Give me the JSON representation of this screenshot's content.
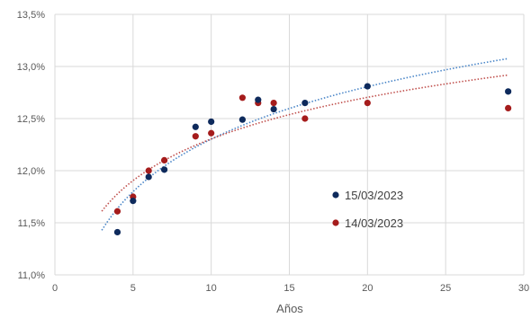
{
  "chart_data": {
    "type": "scatter",
    "title": "",
    "xlabel": "Años",
    "ylabel": "",
    "xlim": [
      0,
      30
    ],
    "ylim": [
      0.11,
      0.135
    ],
    "x_ticks": [
      0,
      5,
      10,
      15,
      20,
      25,
      30
    ],
    "x_tick_labels": [
      "0",
      "5",
      "10",
      "15",
      "20",
      "25",
      "30"
    ],
    "y_ticks": [
      0.11,
      0.115,
      0.12,
      0.125,
      0.13,
      0.135
    ],
    "y_tick_labels": [
      "11,0%",
      "11,5%",
      "12,0%",
      "12,5%",
      "13,0%",
      "13,5%"
    ],
    "grid": true,
    "legend_position": "inside-lower-right",
    "series": [
      {
        "name": "15/03/2023",
        "color": "#0e2a5c",
        "trendline": "logarithmic",
        "trend_color": "#4a86c8",
        "points": [
          {
            "x": 4,
            "y": 0.1141
          },
          {
            "x": 5,
            "y": 0.1171
          },
          {
            "x": 6,
            "y": 0.1194
          },
          {
            "x": 7,
            "y": 0.1201
          },
          {
            "x": 9,
            "y": 0.1242
          },
          {
            "x": 10,
            "y": 0.1247
          },
          {
            "x": 12,
            "y": 0.1249
          },
          {
            "x": 13,
            "y": 0.1268
          },
          {
            "x": 14,
            "y": 0.1259
          },
          {
            "x": 16,
            "y": 0.1265
          },
          {
            "x": 20,
            "y": 0.1281
          },
          {
            "x": 29,
            "y": 0.1276
          }
        ]
      },
      {
        "name": "14/03/2023",
        "color": "#a51c1c",
        "trendline": "logarithmic",
        "trend_color": "#c0504d",
        "points": [
          {
            "x": 4,
            "y": 0.1161
          },
          {
            "x": 5,
            "y": 0.1175
          },
          {
            "x": 6,
            "y": 0.12
          },
          {
            "x": 7,
            "y": 0.121
          },
          {
            "x": 9,
            "y": 0.1233
          },
          {
            "x": 10,
            "y": 0.1236
          },
          {
            "x": 12,
            "y": 0.127
          },
          {
            "x": 13,
            "y": 0.1265
          },
          {
            "x": 14,
            "y": 0.1265
          },
          {
            "x": 16,
            "y": 0.125
          },
          {
            "x": 20,
            "y": 0.1265
          },
          {
            "x": 29,
            "y": 0.126
          }
        ]
      }
    ]
  }
}
